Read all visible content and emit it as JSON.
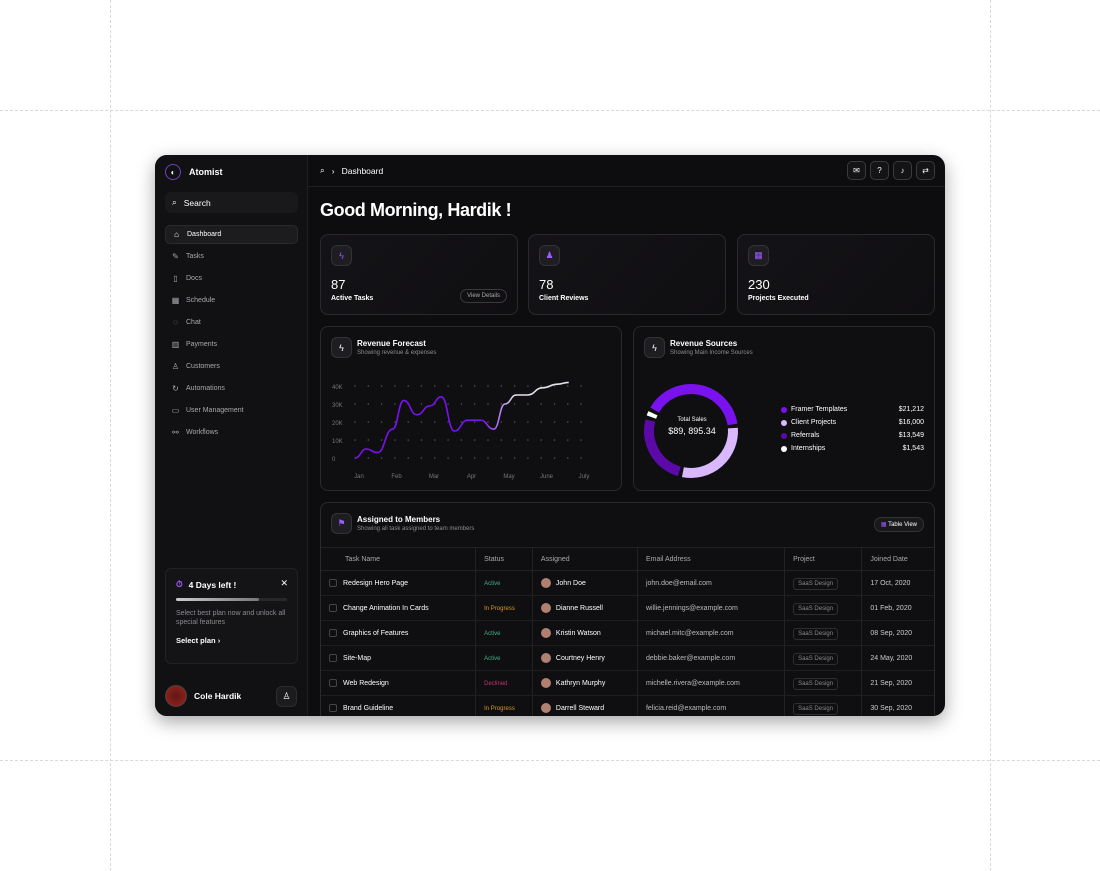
{
  "app": {
    "name": "Atomist",
    "search": "Search"
  },
  "sidebar": {
    "items": [
      {
        "label": "Dashboard",
        "icon": "home-icon",
        "g": "⌂"
      },
      {
        "label": "Tasks",
        "icon": "tasks-icon",
        "g": "✎"
      },
      {
        "label": "Docs",
        "icon": "doc-icon",
        "g": "▯"
      },
      {
        "label": "Schedule",
        "icon": "calendar-icon",
        "g": "▦"
      },
      {
        "label": "Chat",
        "icon": "chat-icon",
        "g": "◌"
      },
      {
        "label": "Payments",
        "icon": "chart-icon",
        "g": "▥"
      },
      {
        "label": "Customers",
        "icon": "user-icon",
        "g": "♙"
      },
      {
        "label": "Automations",
        "icon": "refresh-icon",
        "g": "↻"
      },
      {
        "label": "User Management",
        "icon": "users-icon",
        "g": "▭"
      },
      {
        "label": "Workflows",
        "icon": "workflow-icon",
        "g": "⚯"
      }
    ]
  },
  "promo": {
    "title": "4 Days left !",
    "progress": 0.75,
    "text": "Select best plan now and unlock all special features",
    "cta": "Select plan"
  },
  "user": {
    "name": "Cole Hardik"
  },
  "topbar": {
    "breadcrumb": "Dashboard"
  },
  "greeting": "Good Morning, Hardik !",
  "stats": [
    {
      "value": "87",
      "label": "Active Tasks",
      "action": "View Details"
    },
    {
      "value": "78",
      "label": "Client Reviews"
    },
    {
      "value": "230",
      "label": "Projects Executed"
    }
  ],
  "forecast": {
    "title": "Revenue Forecast",
    "subtitle": "Showing  revenue & expenses"
  },
  "sources": {
    "title": "Revenue Sources",
    "subtitle": "Showing Main Income Sources",
    "total_label": "Total Sales",
    "total": "$89, 895.34",
    "items": [
      {
        "name": "Framer Templates",
        "value": "$21,212",
        "color": "#7a12f0"
      },
      {
        "name": "Client Projects",
        "value": "$16,000",
        "color": "#d9b8ff"
      },
      {
        "name": "Referrals",
        "value": "$13,549",
        "color": "#5b0aa8"
      },
      {
        "name": "Internships",
        "value": "$1,543",
        "color": "#ffffff"
      }
    ]
  },
  "chart_data": {
    "type": "line",
    "categories": [
      "Jan",
      "Feb",
      "Mar",
      "Apr",
      "May",
      "June",
      "July"
    ],
    "yticks": [
      "0",
      "10K",
      "20K",
      "30K",
      "40K"
    ],
    "ylim": [
      0,
      40000
    ],
    "x": [
      0,
      0.3,
      0.6,
      1,
      1.3,
      1.65,
      2,
      2.3,
      2.65,
      3,
      3.35,
      3.7,
      4,
      4.3,
      4.6,
      5,
      5.4,
      5.7
    ],
    "values": [
      0,
      5000,
      3000,
      16000,
      32000,
      24000,
      29000,
      34000,
      15000,
      21000,
      21000,
      16000,
      30000,
      35000,
      35000,
      39000,
      41000,
      42000
    ]
  },
  "members": {
    "title": "Assigned to Members",
    "subtitle": "Showing all task assigned to team members",
    "view": "Table View",
    "columns": [
      "Task Name",
      "Status",
      "Assigned",
      "Email Address",
      "Project",
      "Joined Date"
    ],
    "rows": [
      [
        "Redesign Hero Page",
        "Active",
        "John Doe",
        "john.doe@email.com",
        "SaaS Design",
        "17 Oct, 2020"
      ],
      [
        "Change Animation In Cards",
        "In Progress",
        "Dianne Russell",
        "willie.jennings@example.com",
        "SaaS Design",
        "01 Feb, 2020"
      ],
      [
        "Graphics of Features",
        "Active",
        "Kristin Watson",
        "michael.mitc@example.com",
        "SaaS Design",
        "08 Sep, 2020"
      ],
      [
        "Site-Map",
        "Active",
        "Courtney Henry",
        "debbie.baker@example.com",
        "SaaS Design",
        "24 May, 2020"
      ],
      [
        "Web Redesign",
        "Declined",
        "Kathryn Murphy",
        "michelle.rivera@example.com",
        "SaaS Design",
        "21 Sep, 2020"
      ],
      [
        "Brand Guideline",
        "In Progress",
        "Darrell Steward",
        "felicia.reid@example.com",
        "SaaS Design",
        "30 Sep, 2020"
      ]
    ],
    "status_colors": {
      "Active": "#3fb37f",
      "In Progress": "#d99a2b",
      "Declined": "#c2356a"
    }
  }
}
